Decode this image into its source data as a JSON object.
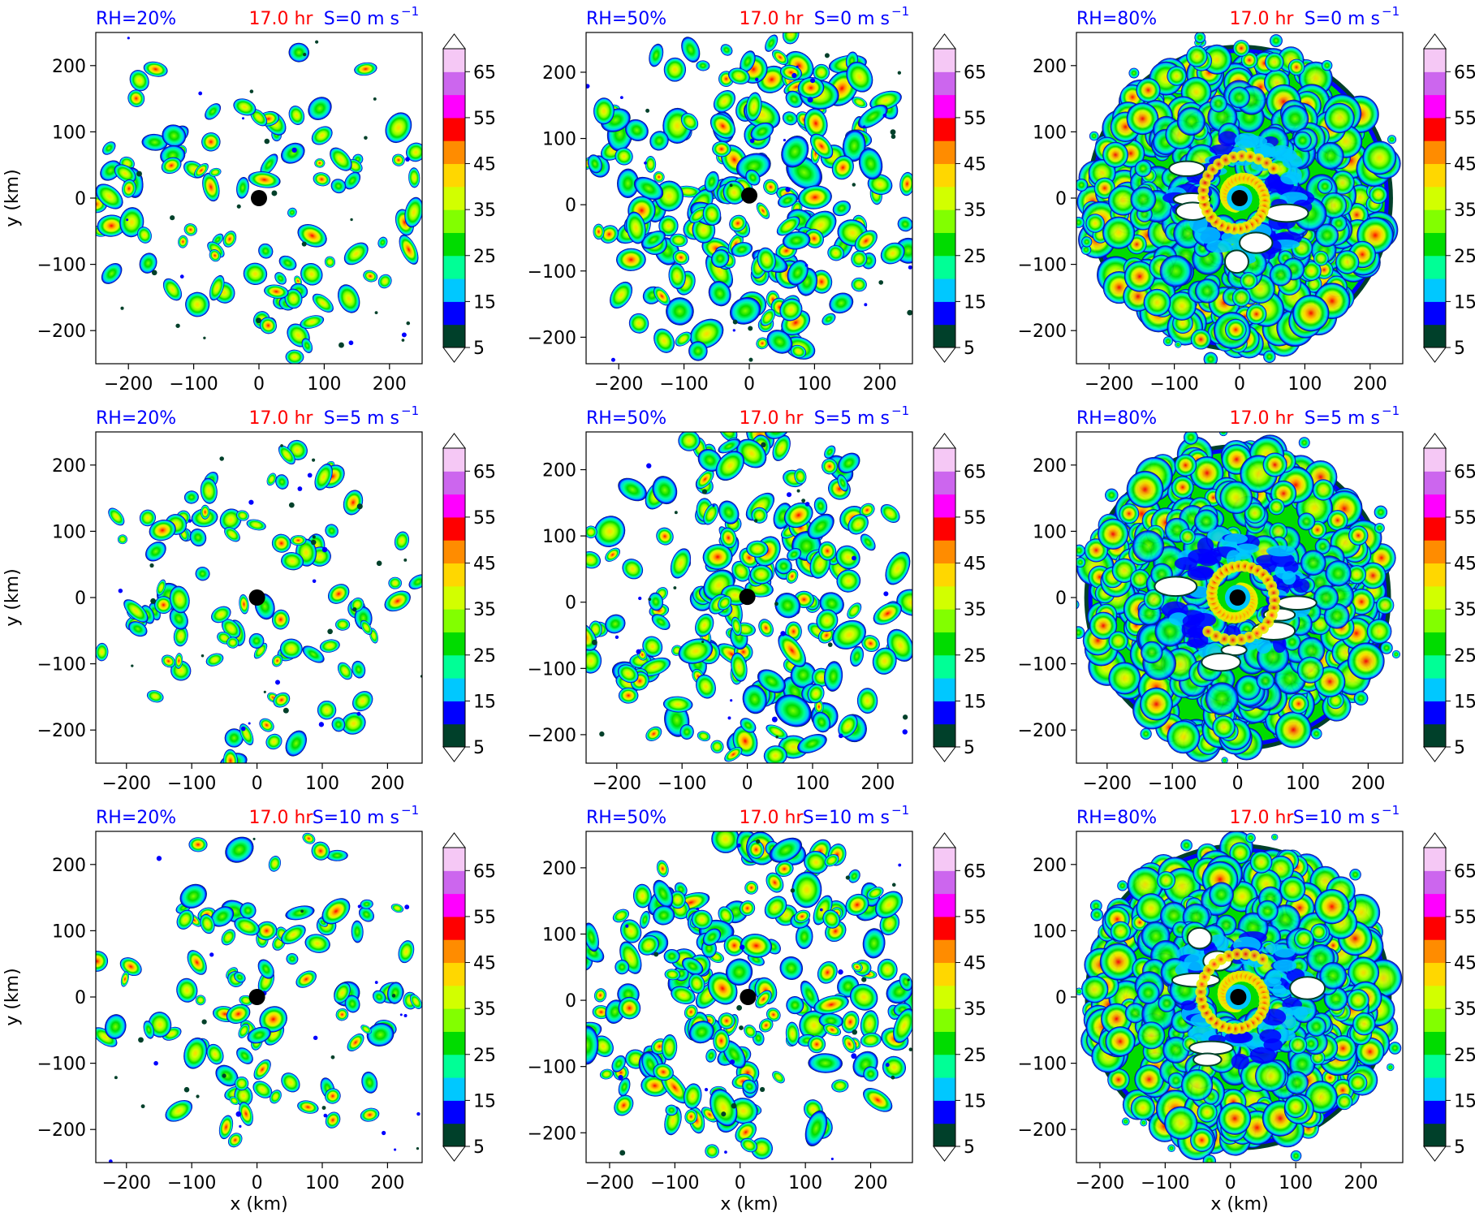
{
  "figure": {
    "colors": {
      "title_blue": "#0000ff",
      "title_red": "#ff0000",
      "storm_center": "#000000"
    },
    "colorbar": {
      "levels": [
        5,
        10,
        15,
        20,
        25,
        30,
        35,
        40,
        45,
        50,
        55,
        60,
        65,
        70
      ],
      "colors": [
        "#00402a",
        "#0000ff",
        "#00c8ff",
        "#00ff96",
        "#00dc00",
        "#82ff00",
        "#d2ff00",
        "#ffd700",
        "#ff8c00",
        "#ff0000",
        "#ff00ff",
        "#cc66ee",
        "#f5c8f5"
      ],
      "tick_labels": [
        "5",
        "15",
        "25",
        "35",
        "45",
        "55",
        "65"
      ],
      "tick_values": [
        5,
        15,
        25,
        35,
        45,
        55,
        65
      ],
      "extend": "both",
      "over_color": "#ffffff",
      "under_color": "#ffffff"
    },
    "tick_labels": [
      "−200",
      "−100",
      "0",
      "100",
      "200"
    ],
    "xlabel": "x (km)",
    "ylabel": "y (km)"
  },
  "chart_data": [
    {
      "type": "heatmap",
      "row": 0,
      "col": 0,
      "rh_label": "RH=20%",
      "time_label": "17.0 hr",
      "shear_label": "S=0 m s",
      "shear_exp": "−1",
      "xlim": [
        -250,
        250
      ],
      "ylim": [
        -250,
        250
      ],
      "xticks": [
        -200,
        -100,
        0,
        100,
        200
      ],
      "yticks": [
        -200,
        -100,
        0,
        100,
        200
      ],
      "center": [
        0,
        0
      ],
      "coverage": "scattered"
    },
    {
      "type": "heatmap",
      "row": 0,
      "col": 1,
      "rh_label": "RH=50%",
      "time_label": "17.0 hr",
      "shear_label": "S=0 m s",
      "shear_exp": "−1",
      "xlim": [
        -250,
        250
      ],
      "ylim": [
        -240,
        260
      ],
      "xticks": [
        -200,
        -100,
        0,
        100,
        200
      ],
      "yticks": [
        -200,
        -100,
        0,
        100,
        200
      ],
      "center": [
        0,
        14
      ],
      "coverage": "moderate"
    },
    {
      "type": "heatmap",
      "row": 0,
      "col": 2,
      "rh_label": "RH=80%",
      "time_label": "17.0 hr",
      "shear_label": "S=0 m s",
      "shear_exp": "−1",
      "xlim": [
        -250,
        250
      ],
      "ylim": [
        -250,
        250
      ],
      "xticks": [
        -200,
        -100,
        0,
        100,
        200
      ],
      "yticks": [
        -200,
        -100,
        0,
        100,
        200
      ],
      "center": [
        0,
        0
      ],
      "coverage": "dense"
    },
    {
      "type": "heatmap",
      "row": 1,
      "col": 0,
      "rh_label": "RH=20%",
      "time_label": "17.0 hr",
      "shear_label": "S=5 m s",
      "shear_exp": "−1",
      "xlim": [
        -247,
        253
      ],
      "ylim": [
        -250,
        250
      ],
      "xticks": [
        -200,
        -100,
        0,
        100,
        200
      ],
      "yticks": [
        -200,
        -100,
        0,
        100,
        200
      ],
      "center": [
        0,
        0
      ],
      "coverage": "scattered"
    },
    {
      "type": "heatmap",
      "row": 1,
      "col": 1,
      "rh_label": "RH=50%",
      "time_label": "17.0 hr",
      "shear_label": "S=5 m s",
      "shear_exp": "−1",
      "xlim": [
        -247,
        253
      ],
      "ylim": [
        -243,
        257
      ],
      "xticks": [
        -200,
        -100,
        0,
        100,
        200
      ],
      "yticks": [
        -200,
        -100,
        0,
        100,
        200
      ],
      "center": [
        0,
        8
      ],
      "coverage": "moderate"
    },
    {
      "type": "heatmap",
      "row": 1,
      "col": 2,
      "rh_label": "RH=80%",
      "time_label": "17.0 hr",
      "shear_label": "S=5 m s",
      "shear_exp": "−1",
      "xlim": [
        -247,
        253
      ],
      "ylim": [
        -250,
        250
      ],
      "xticks": [
        -200,
        -100,
        0,
        100,
        200
      ],
      "yticks": [
        -200,
        -100,
        0,
        100,
        200
      ],
      "center": [
        0,
        0
      ],
      "coverage": "dense"
    },
    {
      "type": "heatmap",
      "row": 2,
      "col": 0,
      "rh_label": "RH=20%",
      "time_label": "17.0 hr",
      "shear_label": "S=10 m s",
      "shear_exp": "−1",
      "xlim": [
        -247,
        253
      ],
      "ylim": [
        -250,
        250
      ],
      "xticks": [
        -200,
        -100,
        0,
        100,
        200
      ],
      "yticks": [
        -200,
        -100,
        0,
        100,
        200
      ],
      "center": [
        0,
        0
      ],
      "coverage": "scattered"
    },
    {
      "type": "heatmap",
      "row": 2,
      "col": 1,
      "rh_label": "RH=50%",
      "time_label": "17.0 hr",
      "shear_label": "S=10 m s",
      "shear_exp": "−1",
      "xlim": [
        -236,
        264
      ],
      "ylim": [
        -245,
        255
      ],
      "xticks": [
        -200,
        -100,
        0,
        100,
        200
      ],
      "yticks": [
        -200,
        -100,
        0,
        100,
        200
      ],
      "center": [
        12,
        5
      ],
      "coverage": "moderate"
    },
    {
      "type": "heatmap",
      "row": 2,
      "col": 2,
      "rh_label": "RH=80%",
      "time_label": "17.0 hr",
      "shear_label": "S=10 m s",
      "shear_exp": "−1",
      "xlim": [
        -236,
        264
      ],
      "ylim": [
        -250,
        250
      ],
      "xticks": [
        -200,
        -100,
        0,
        100,
        200
      ],
      "yticks": [
        -200,
        -100,
        0,
        100,
        200
      ],
      "center": [
        12,
        0
      ],
      "coverage": "dense"
    }
  ]
}
